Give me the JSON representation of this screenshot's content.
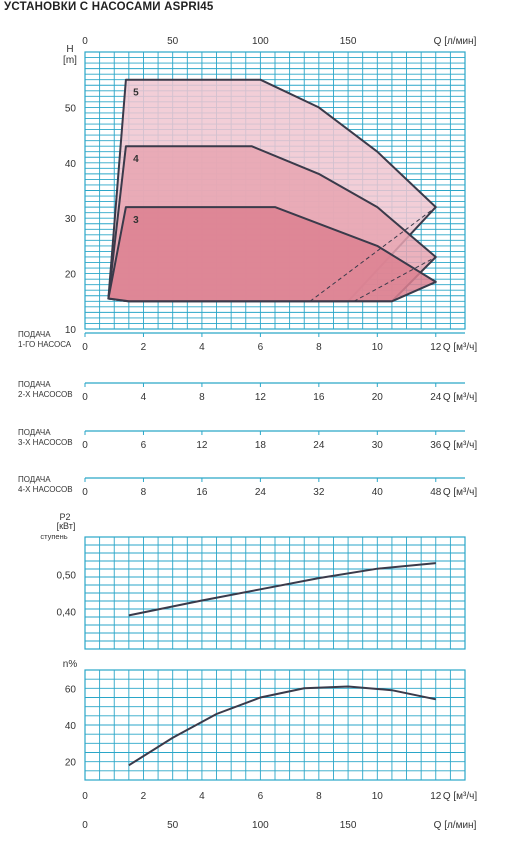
{
  "title": "УСТАНОВКИ С НАСОСАМИ ASPRI45",
  "colors": {
    "grid": "#2aa6c8",
    "curve": "#3a3a4a",
    "fill_3": "#dc8090",
    "fill_4": "#e8a4b2",
    "fill_5": "#f0c6d0",
    "axis_line": "#2aa6c8"
  },
  "top_axis": {
    "label": "Q [л/мин]",
    "ticks": [
      0,
      50,
      100,
      150
    ]
  },
  "bottom_axis": {
    "label": "Q [л/мин]",
    "ticks": [
      0,
      50,
      100,
      150
    ]
  },
  "flow_axes": [
    {
      "label_line1": "ПОДАЧА",
      "label_line2": "1-ГО НАСОСА",
      "unit": "Q [м³/ч]",
      "ticks": [
        0,
        2,
        4,
        6,
        8,
        10,
        12
      ]
    },
    {
      "label_line1": "ПОДАЧА",
      "label_line2": "2-Х НАСОСОВ",
      "unit": "Q [м³/ч]",
      "ticks": [
        0,
        4,
        8,
        12,
        16,
        20,
        24
      ]
    },
    {
      "label_line1": "ПОДАЧА",
      "label_line2": "3-Х НАСОСОВ",
      "unit": "Q [м³/ч]",
      "ticks": [
        0,
        6,
        12,
        18,
        24,
        30,
        36
      ]
    },
    {
      "label_line1": "ПОДАЧА",
      "label_line2": "4-Х НАСОСОВ",
      "unit": "Q [м³/ч]",
      "ticks": [
        0,
        8,
        16,
        24,
        32,
        40,
        48
      ]
    }
  ],
  "chart_data": [
    {
      "type": "area",
      "id": "head",
      "ylabel_line1": "H",
      "ylabel_line2": "[m]",
      "xlim": [
        0,
        13
      ],
      "ylim": [
        10,
        60
      ],
      "yticks": [
        10,
        20,
        30,
        40,
        50
      ],
      "series": [
        {
          "name": "5",
          "points": [
            [
              0.8,
              15.5
            ],
            [
              1.4,
              55
            ],
            [
              6,
              55
            ],
            [
              8,
              50
            ],
            [
              10,
              42
            ],
            [
              12,
              32
            ],
            [
              9,
              15
            ],
            [
              1.5,
              15
            ]
          ]
        },
        {
          "name": "4",
          "points": [
            [
              0.8,
              15.5
            ],
            [
              1.4,
              43
            ],
            [
              5.7,
              43
            ],
            [
              8,
              38
            ],
            [
              10,
              32
            ],
            [
              12,
              23
            ],
            [
              10.5,
              15
            ],
            [
              1.5,
              15
            ]
          ]
        },
        {
          "name": "3",
          "points": [
            [
              0.8,
              15.5
            ],
            [
              1.4,
              32
            ],
            [
              6.5,
              32
            ],
            [
              8.5,
              28
            ],
            [
              10,
              25
            ],
            [
              12,
              18.5
            ],
            [
              10.5,
              15
            ],
            [
              1.5,
              15
            ]
          ]
        }
      ],
      "dashed_series": [
        {
          "points": [
            [
              7.7,
              15
            ],
            [
              12,
              32
            ]
          ]
        },
        {
          "points": [
            [
              9.2,
              15
            ],
            [
              12,
              23
            ]
          ]
        }
      ]
    },
    {
      "type": "line",
      "id": "power",
      "ylabel_line1": "P2",
      "ylabel_line2": "[кВт]",
      "ylabel_line3": "ступень",
      "ylim": [
        0.3,
        0.6
      ],
      "yticks": [
        "0,40",
        "0,50"
      ],
      "ytick_values": [
        0.4,
        0.5
      ],
      "series": [
        {
          "points": [
            [
              1.5,
              0.39
            ],
            [
              4,
              0.43
            ],
            [
              6,
              0.46
            ],
            [
              8,
              0.49
            ],
            [
              10,
              0.515
            ],
            [
              12,
              0.53
            ]
          ]
        }
      ]
    },
    {
      "type": "line",
      "id": "efficiency",
      "ylabel_line1": "n%",
      "ylim": [
        10,
        70
      ],
      "yticks": [
        20,
        40,
        60
      ],
      "xticks": [
        2,
        4,
        6,
        8,
        10,
        12
      ],
      "xunit": "Q [м³/ч]",
      "series": [
        {
          "points": [
            [
              1.5,
              18
            ],
            [
              3,
              33
            ],
            [
              4.5,
              46
            ],
            [
              6,
              55
            ],
            [
              7.5,
              60
            ],
            [
              9,
              61
            ],
            [
              10.5,
              59
            ],
            [
              12,
              54
            ]
          ]
        }
      ]
    }
  ]
}
